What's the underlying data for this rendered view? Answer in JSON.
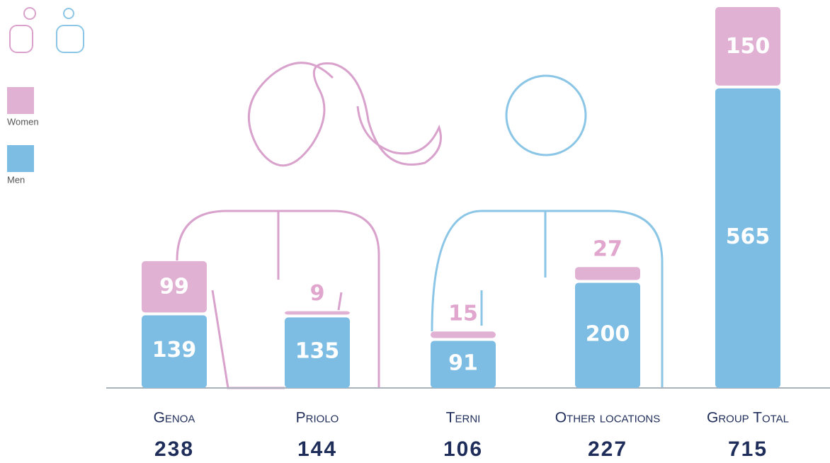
{
  "chart_data": {
    "type": "stacked-bar",
    "categories": [
      "Genoa",
      "Priolo",
      "Terni",
      "Other locations",
      "Group Total"
    ],
    "series": [
      {
        "name": "Men",
        "color": "#7dbde3",
        "values": [
          139,
          135,
          91,
          200,
          565
        ]
      },
      {
        "name": "Women",
        "color": "#e0b1d3",
        "values": [
          99,
          9,
          15,
          27,
          150
        ]
      }
    ],
    "totals": [
      238,
      144,
      106,
      227,
      715
    ],
    "legend": "top-left"
  }
}
